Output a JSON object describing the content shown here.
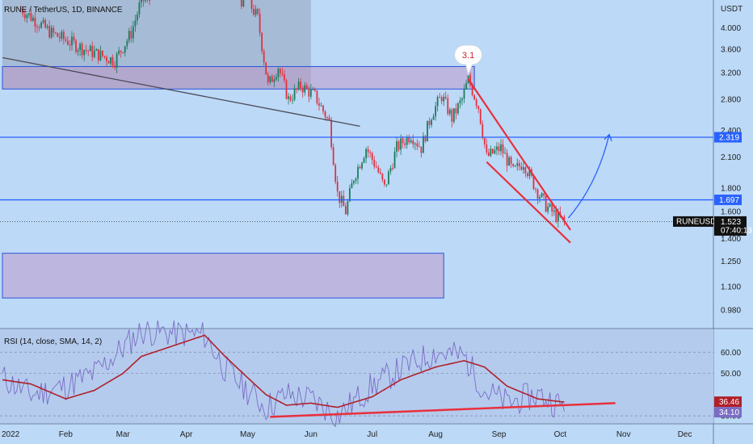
{
  "header": {
    "symbol_title": "RUNE / TetherUS, 1D, BINANCE"
  },
  "price_axis": {
    "currency": "USDT",
    "ticks": [
      "4.000",
      "3.600",
      "3.200",
      "2.800",
      "2.400",
      "2.100",
      "1.800",
      "1.600",
      "1.400",
      "1.250",
      "1.100",
      "0.980"
    ]
  },
  "price_tags": {
    "level_high": "2.319",
    "level_low": "1.697",
    "ticker": "RUNEUSDT",
    "last_price": "1.523",
    "countdown": "07:40:13"
  },
  "callout": {
    "label": "3.1"
  },
  "rsi": {
    "legend": "RSI (14, close, SMA, 14, 2)",
    "ticks": [
      "60.00",
      "50.00",
      "30.00"
    ],
    "sma_value": "36.46",
    "rsi_value": "34.10"
  },
  "time_axis": {
    "labels": [
      "2022",
      "Feb",
      "Mar",
      "Apr",
      "May",
      "Jun",
      "Jul",
      "Aug",
      "Sep",
      "Oct",
      "Nov",
      "Dec"
    ]
  },
  "colors": {
    "background": "#bcd9f7",
    "candle_up": "#1a7a5a",
    "candle_down": "#e03040",
    "level_line": "#2962ff",
    "wedge": "#e8303c",
    "projection": "#2962ff",
    "rsi_line": "#7b6cc4",
    "rsi_sma": "#b0202a"
  },
  "chart_data": {
    "type": "candlestick",
    "title": "RUNE / TetherUS, 1D, BINANCE",
    "y_scale": "log",
    "ylim": [
      0.9,
      4.6
    ],
    "x_range": [
      "2022-01-01",
      "2022-12-15"
    ],
    "price_series": [
      {
        "date": "2022-01-10",
        "close": 4.4
      },
      {
        "date": "2022-01-25",
        "close": 3.9
      },
      {
        "date": "2022-02-10",
        "close": 3.6
      },
      {
        "date": "2022-02-25",
        "close": 3.4
      },
      {
        "date": "2022-03-05",
        "close": 3.9
      },
      {
        "date": "2022-03-10",
        "close": 4.6
      },
      {
        "date": "2022-05-01",
        "close": 4.6
      },
      {
        "date": "2022-05-06",
        "close": 4.2
      },
      {
        "date": "2022-05-11",
        "close": 3.0
      },
      {
        "date": "2022-05-16",
        "close": 3.3
      },
      {
        "date": "2022-05-21",
        "close": 2.8
      },
      {
        "date": "2022-05-27",
        "close": 3.0
      },
      {
        "date": "2022-06-03",
        "close": 2.85
      },
      {
        "date": "2022-06-10",
        "close": 2.5
      },
      {
        "date": "2022-06-14",
        "close": 1.75
      },
      {
        "date": "2022-06-18",
        "close": 1.6
      },
      {
        "date": "2022-06-22",
        "close": 1.9
      },
      {
        "date": "2022-06-28",
        "close": 2.2
      },
      {
        "date": "2022-07-03",
        "close": 2.0
      },
      {
        "date": "2022-07-07",
        "close": 1.8
      },
      {
        "date": "2022-07-13",
        "close": 2.2
      },
      {
        "date": "2022-07-20",
        "close": 2.35
      },
      {
        "date": "2022-07-25",
        "close": 2.2
      },
      {
        "date": "2022-07-30",
        "close": 2.6
      },
      {
        "date": "2022-08-04",
        "close": 2.85
      },
      {
        "date": "2022-08-09",
        "close": 2.55
      },
      {
        "date": "2022-08-14",
        "close": 2.8
      },
      {
        "date": "2022-08-17",
        "close": 3.1
      },
      {
        "date": "2022-08-22",
        "close": 2.7
      },
      {
        "date": "2022-08-26",
        "close": 2.1
      },
      {
        "date": "2022-09-02",
        "close": 2.2
      },
      {
        "date": "2022-09-08",
        "close": 1.95
      },
      {
        "date": "2022-09-13",
        "close": 2.05
      },
      {
        "date": "2022-09-19",
        "close": 1.8
      },
      {
        "date": "2022-09-24",
        "close": 1.65
      },
      {
        "date": "2022-09-30",
        "close": 1.55
      },
      {
        "date": "2022-10-03",
        "close": 1.523
      }
    ],
    "levels": [
      {
        "name": "2.319",
        "price": 2.319
      },
      {
        "name": "1.697",
        "price": 1.697
      }
    ],
    "zones": [
      {
        "from_date": "2022-01-01",
        "to_date": "2022-06-01",
        "low": 2.95,
        "high": 4.6,
        "fill": "gray"
      },
      {
        "from_date": "2022-01-01",
        "to_date": "2022-08-20",
        "low": 2.95,
        "high": 3.3,
        "fill": "purple"
      },
      {
        "from_date": "2022-01-01",
        "to_date": "2022-08-05",
        "low": 1.04,
        "high": 1.3,
        "fill": "purple"
      }
    ],
    "trendlines": [
      {
        "from": [
          "2022-01-01",
          3.45
        ],
        "to": [
          "2022-06-25",
          2.45
        ]
      },
      {
        "from": [
          "2022-08-17",
          3.1
        ],
        "to": [
          "2022-10-06",
          1.46
        ]
      },
      {
        "from": [
          "2022-08-26",
          2.05
        ],
        "to": [
          "2022-10-06",
          1.37
        ]
      }
    ],
    "projection": {
      "from": [
        "2022-10-05",
        1.55
      ],
      "to": [
        "2022-10-25",
        2.35
      ]
    },
    "annotation": {
      "date": "2022-08-17",
      "price": 3.1,
      "text": "3.1"
    },
    "rsi_ylim": [
      27,
      70
    ],
    "rsi_series": [
      {
        "date": "2022-01-01",
        "rsi": 48,
        "sma": 47
      },
      {
        "date": "2022-01-15",
        "rsi": 40,
        "sma": 45
      },
      {
        "date": "2022-02-01",
        "rsi": 44,
        "sma": 38
      },
      {
        "date": "2022-02-15",
        "rsi": 50,
        "sma": 42
      },
      {
        "date": "2022-03-01",
        "rsi": 62,
        "sma": 50
      },
      {
        "date": "2022-03-10",
        "rsi": 70,
        "sma": 58
      },
      {
        "date": "2022-04-10",
        "rsi": 68,
        "sma": 68
      },
      {
        "date": "2022-04-20",
        "rsi": 52,
        "sma": 58
      },
      {
        "date": "2022-05-01",
        "rsi": 42,
        "sma": 48
      },
      {
        "date": "2022-05-10",
        "rsi": 34,
        "sma": 40
      },
      {
        "date": "2022-05-20",
        "rsi": 40,
        "sma": 35
      },
      {
        "date": "2022-06-01",
        "rsi": 38,
        "sma": 36
      },
      {
        "date": "2022-06-14",
        "rsi": 30,
        "sma": 34
      },
      {
        "date": "2022-07-01",
        "rsi": 44,
        "sma": 39
      },
      {
        "date": "2022-07-15",
        "rsi": 52,
        "sma": 47
      },
      {
        "date": "2022-08-01",
        "rsi": 60,
        "sma": 53
      },
      {
        "date": "2022-08-15",
        "rsi": 58,
        "sma": 56
      },
      {
        "date": "2022-08-25",
        "rsi": 42,
        "sma": 53
      },
      {
        "date": "2022-09-05",
        "rsi": 36,
        "sma": 44
      },
      {
        "date": "2022-09-20",
        "rsi": 40,
        "sma": 38
      },
      {
        "date": "2022-10-03",
        "rsi": 34.1,
        "sma": 36.46
      }
    ],
    "rsi_trendline": {
      "from": [
        "2022-05-12",
        29.5
      ],
      "to": [
        "2022-10-28",
        36
      ]
    }
  }
}
